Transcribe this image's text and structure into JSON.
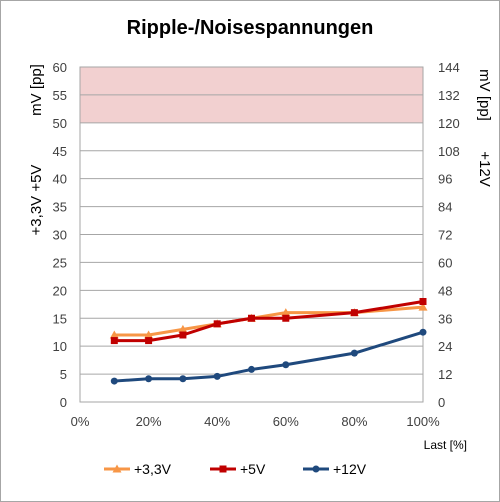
{
  "chart_data": {
    "type": "line",
    "title": "Ripple-/Noisespannungen",
    "xlabel": "Last [%]",
    "x_ticks": [
      "0%",
      "20%",
      "40%",
      "60%",
      "80%",
      "100%"
    ],
    "xlim": [
      0,
      100
    ],
    "ylabel_left_line1": "+3,3V +5V",
    "ylabel_left_line2": "mV [pp]",
    "ylabel_right_line1": "+12V",
    "ylabel_right_line2": "mV [pp]",
    "ylim_left": [
      0,
      60
    ],
    "ylim_right": [
      0,
      144
    ],
    "y_ticks_left": [
      "0",
      "5",
      "10",
      "15",
      "20",
      "25",
      "30",
      "35",
      "40",
      "45",
      "50",
      "55",
      "60"
    ],
    "y_ticks_right": [
      "0",
      "12",
      "24",
      "36",
      "48",
      "60",
      "72",
      "84",
      "96",
      "108",
      "120",
      "132",
      "144"
    ],
    "limit_band_left": [
      50,
      60
    ],
    "grid": true,
    "legend_position": "bottom",
    "series": [
      {
        "name": "+3,3V",
        "axis": "left",
        "color": "#f79646",
        "marker": "triangle",
        "x": [
          10,
          20,
          30,
          40,
          50,
          60,
          80,
          100
        ],
        "values": [
          12,
          12,
          13,
          14,
          15,
          16,
          16,
          17
        ]
      },
      {
        "name": "+5V",
        "axis": "left",
        "color": "#c00000",
        "marker": "square",
        "x": [
          10,
          20,
          30,
          40,
          50,
          60,
          80,
          100
        ],
        "values": [
          11,
          11,
          12,
          14,
          15,
          15,
          16,
          18
        ]
      },
      {
        "name": "+12V",
        "axis": "right",
        "color": "#1f497d",
        "marker": "circle",
        "x": [
          10,
          20,
          30,
          40,
          50,
          60,
          80,
          100
        ],
        "values": [
          9,
          10,
          10,
          11,
          14,
          16,
          21,
          30
        ]
      }
    ]
  }
}
